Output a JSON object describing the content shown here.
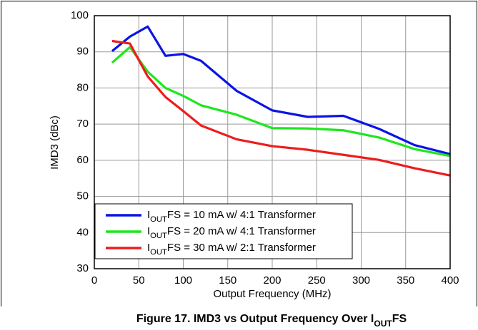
{
  "chart_data": {
    "type": "line",
    "caption": "Figure 17. IMD3 vs Output Frequency Over IOUTFS",
    "x_label": "Output Frequency (MHz)",
    "y_label": "IMD3 (dBc)",
    "x": [
      20,
      40,
      60,
      80,
      100,
      120,
      160,
      200,
      240,
      280,
      320,
      360,
      400
    ],
    "series": [
      {
        "name": "IOUTFS = 10 mA w/ 4:1 Transformer",
        "color": "#0a14e6",
        "values": [
          90.2,
          94.2,
          97,
          88.9,
          89.4,
          87.5,
          79.2,
          73.8,
          72.0,
          72.3,
          68.7,
          64.2,
          61.7
        ]
      },
      {
        "name": "IOUTFS = 20 mA w/ 4:1 Transformer",
        "color": "#1ee61e",
        "values": [
          87,
          91.3,
          84.5,
          80,
          77.8,
          75.2,
          72.6,
          68.9,
          68.8,
          68.3,
          66.3,
          63.1,
          61.2
        ]
      },
      {
        "name": "IOUTFS = 30 mA w/ 2:1 Transformer",
        "color": "#ee1c1c",
        "values": [
          93,
          92.3,
          83.2,
          77.5,
          73.6,
          69.6,
          65.8,
          63.9,
          62.9,
          61.5,
          60.1,
          57.8,
          55.8
        ]
      }
    ],
    "xlim": [
      0,
      400
    ],
    "xticks": [
      0,
      50,
      100,
      150,
      200,
      250,
      300,
      350,
      400
    ],
    "ylim": [
      30,
      100
    ],
    "yticks": [
      30,
      40,
      50,
      60,
      70,
      80,
      90,
      100
    ],
    "grid": true,
    "legend": "lower left"
  }
}
